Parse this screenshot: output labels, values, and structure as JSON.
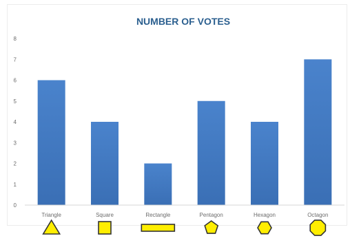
{
  "chart_data": {
    "type": "bar",
    "title": "NUMBER OF VOTES",
    "xlabel": "",
    "ylabel": "",
    "categories": [
      "Triangle",
      "Square",
      "Rectangle",
      "Pentagon",
      "Hexagon",
      "Octagon"
    ],
    "values": [
      6,
      4,
      2,
      5,
      4,
      7
    ],
    "ylim": [
      0,
      8
    ],
    "yticks": [
      "0",
      "1",
      "2",
      "3",
      "4",
      "5",
      "6",
      "7",
      "8"
    ],
    "grid": false,
    "legend": "none",
    "colors": {
      "bar": "#3a6fb5",
      "bar_top": "#4a83cc",
      "title": "#2b5f8f",
      "icon_fill": "#ffee00",
      "icon_stroke": "#333333"
    },
    "category_icons": [
      "triangle-icon",
      "square-icon",
      "rectangle-icon",
      "pentagon-icon",
      "hexagon-icon",
      "octagon-icon"
    ]
  }
}
